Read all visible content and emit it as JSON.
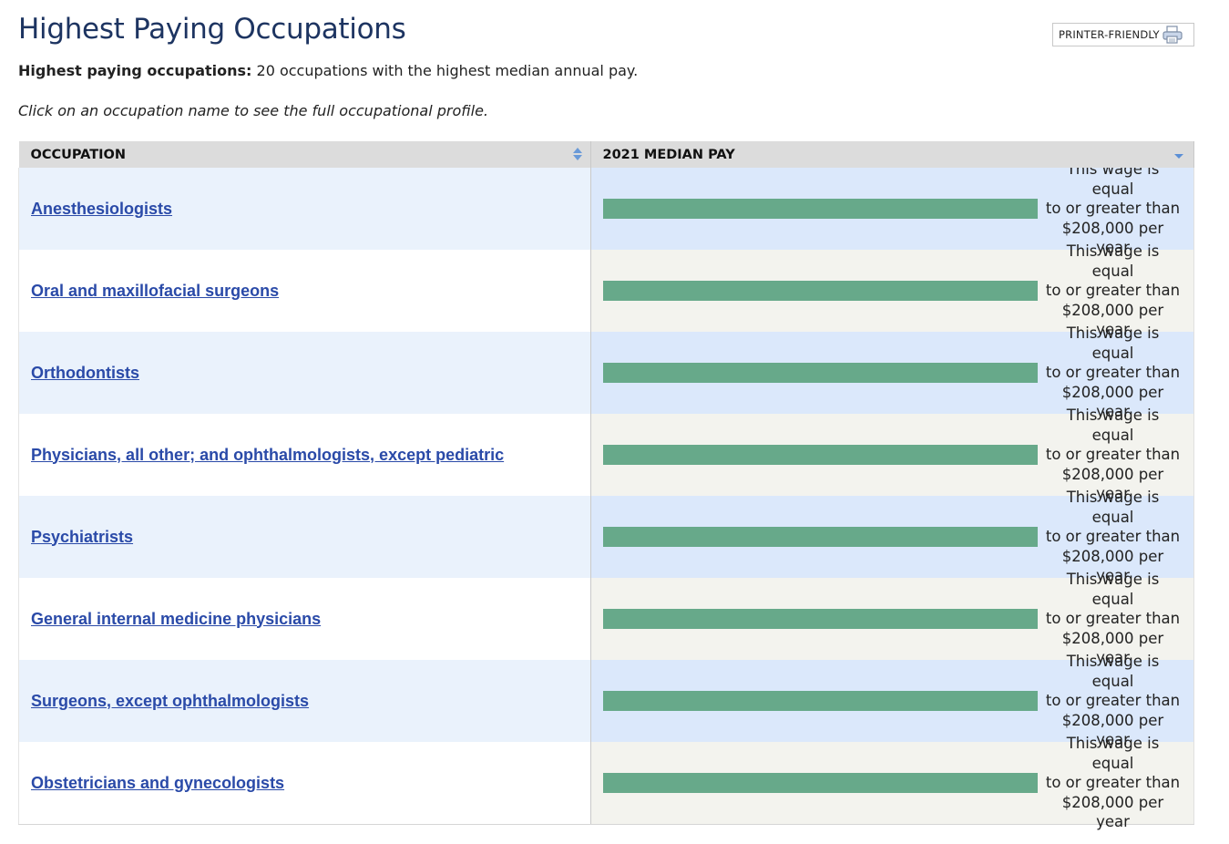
{
  "page": {
    "title": "Highest Paying Occupations",
    "printer_label": "PRINTER-FRIENDLY",
    "summary_bold": "Highest paying occupations:",
    "summary_text": " 20 occupations with the highest median annual pay.",
    "instruction": "Click on an occupation name to see the full occupational profile."
  },
  "table": {
    "headers": {
      "occupation": "OCCUPATION",
      "pay": "2021 MEDIAN PAY"
    },
    "rows": [
      {
        "occupation": "Anesthesiologists",
        "note_1": "This wage is equal",
        "note_2": "to or greater than",
        "note_3": "$208,000 per year",
        "bar_fraction": 1.0
      },
      {
        "occupation": "Oral and maxillofacial surgeons",
        "note_1": "This wage is equal",
        "note_2": "to or greater than",
        "note_3": "$208,000 per year",
        "bar_fraction": 1.0
      },
      {
        "occupation": "Orthodontists",
        "note_1": "This wage is equal",
        "note_2": "to or greater than",
        "note_3": "$208,000 per year",
        "bar_fraction": 1.0
      },
      {
        "occupation": "Physicians, all other; and ophthalmologists, except pediatric",
        "note_1": "This wage is equal",
        "note_2": "to or greater than",
        "note_3": "$208,000 per year",
        "bar_fraction": 1.0
      },
      {
        "occupation": "Psychiatrists",
        "note_1": "This wage is equal",
        "note_2": "to or greater than",
        "note_3": "$208,000 per year",
        "bar_fraction": 1.0
      },
      {
        "occupation": "General internal medicine physicians",
        "note_1": "This wage is equal",
        "note_2": "to or greater than",
        "note_3": "$208,000 per year",
        "bar_fraction": 1.0
      },
      {
        "occupation": "Surgeons, except ophthalmologists",
        "note_1": "This wage is equal",
        "note_2": "to or greater than",
        "note_3": "$208,000 per year",
        "bar_fraction": 1.0
      },
      {
        "occupation": "Obstetricians and gynecologists",
        "note_1": "This wage is equal",
        "note_2": "to or greater than",
        "note_3": "$208,000 per year",
        "bar_fraction": 1.0
      }
    ]
  },
  "colors": {
    "title": "#1d3461",
    "link": "#2a4aa8",
    "bar": "#67a98a",
    "header_bg": "#dcdcdc",
    "sort_icon": "#5b8fd6"
  },
  "icons": {
    "printer": "printer-icon",
    "sort_occupation": "sort-both-icon",
    "sort_pay": "sort-descending-icon"
  }
}
